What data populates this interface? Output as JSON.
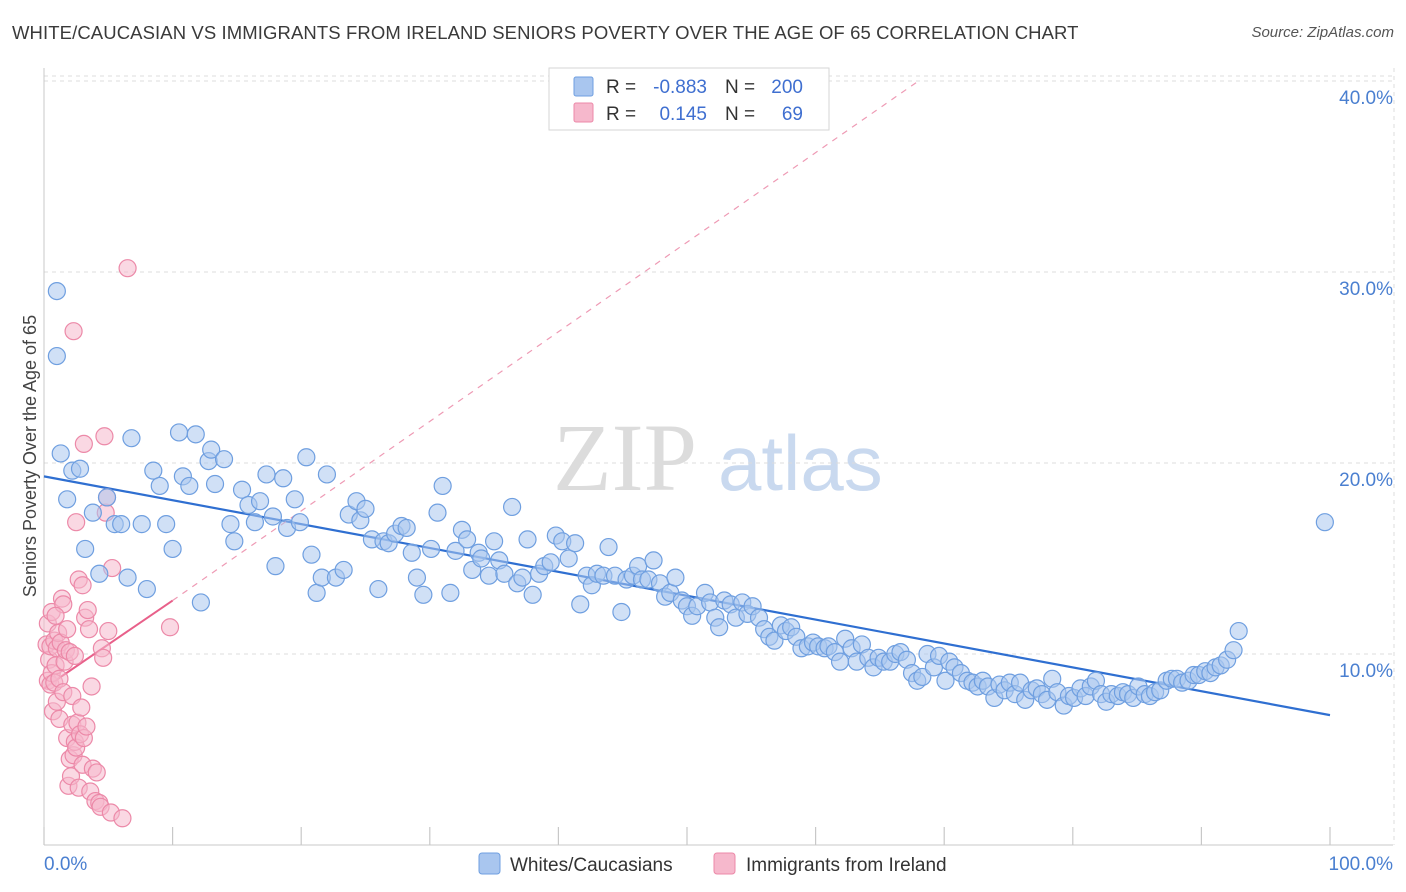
{
  "title": "WHITE/CAUCASIAN VS IMMIGRANTS FROM IRELAND SENIORS POVERTY OVER THE AGE OF 65 CORRELATION CHART",
  "source": "Source: ZipAtlas.com",
  "watermark": {
    "zip": "ZIP",
    "atlas": "atlas"
  },
  "colors": {
    "blue_fill": "#a9c6ef",
    "blue_stroke": "#6f9fe0",
    "blue_line": "#2f6fd1",
    "pink_fill": "#f6b8cc",
    "pink_stroke": "#ec89a8",
    "pink_line": "#e8608a",
    "grid": "#dcdcdc",
    "tick_text": "#4a7fd0"
  },
  "legend": {
    "rows": [
      {
        "r_label": "R =",
        "r_value": "-0.883",
        "n_label": "N =",
        "n_value": "200"
      },
      {
        "r_label": "R =",
        "r_value": "0.145",
        "n_label": "N =",
        "n_value": "69"
      }
    ]
  },
  "chart_data": {
    "type": "scatter",
    "title": "WHITE/CAUCASIAN VS IMMIGRANTS FROM IRELAND SENIORS POVERTY OVER THE AGE OF 65 CORRELATION CHART",
    "xlabel": "",
    "ylabel": "Seniors Poverty Over the Age of 65",
    "xlim": [
      0,
      100
    ],
    "ylim": [
      0,
      42
    ],
    "x_tick_labels": [
      "0.0%",
      "100.0%"
    ],
    "y_ticks": [
      10,
      20,
      30,
      40
    ],
    "y_tick_labels": [
      "10.0%",
      "20.0%",
      "30.0%",
      "40.0%"
    ],
    "grid": true,
    "legend_position": "top-center",
    "series": [
      {
        "name": "Whites/Caucasians",
        "color": "#a9c6ef",
        "trend": {
          "x": [
            0,
            100
          ],
          "y": [
            19.3,
            6.8
          ]
        },
        "points": [
          [
            1.0,
            25.6
          ],
          [
            1.0,
            29.0
          ],
          [
            1.3,
            20.5
          ],
          [
            1.8,
            18.1
          ],
          [
            2.2,
            19.6
          ],
          [
            2.8,
            19.7
          ],
          [
            3.2,
            15.5
          ],
          [
            3.8,
            17.4
          ],
          [
            4.3,
            14.2
          ],
          [
            4.9,
            18.2
          ],
          [
            5.5,
            16.8
          ],
          [
            6.0,
            16.8
          ],
          [
            6.5,
            14.0
          ],
          [
            6.8,
            21.3
          ],
          [
            7.6,
            16.8
          ],
          [
            8.0,
            13.4
          ],
          [
            8.5,
            19.6
          ],
          [
            9.0,
            18.8
          ],
          [
            9.5,
            16.8
          ],
          [
            10.0,
            15.5
          ],
          [
            10.5,
            21.6
          ],
          [
            10.8,
            19.3
          ],
          [
            11.3,
            18.8
          ],
          [
            11.8,
            21.5
          ],
          [
            12.2,
            12.7
          ],
          [
            12.8,
            20.1
          ],
          [
            13.0,
            20.7
          ],
          [
            13.3,
            18.9
          ],
          [
            14.0,
            20.2
          ],
          [
            14.5,
            16.8
          ],
          [
            14.8,
            15.9
          ],
          [
            15.4,
            18.6
          ],
          [
            15.9,
            17.8
          ],
          [
            16.4,
            16.9
          ],
          [
            16.8,
            18.0
          ],
          [
            17.3,
            19.4
          ],
          [
            17.8,
            17.2
          ],
          [
            18.0,
            14.6
          ],
          [
            18.6,
            19.2
          ],
          [
            18.9,
            16.6
          ],
          [
            19.5,
            18.1
          ],
          [
            19.9,
            16.9
          ],
          [
            20.4,
            20.3
          ],
          [
            20.8,
            15.2
          ],
          [
            21.2,
            13.2
          ],
          [
            21.6,
            14.0
          ],
          [
            22.0,
            19.4
          ],
          [
            22.7,
            14.0
          ],
          [
            23.3,
            14.4
          ],
          [
            23.7,
            17.3
          ],
          [
            24.3,
            18.0
          ],
          [
            24.6,
            17.0
          ],
          [
            25.0,
            17.6
          ],
          [
            25.5,
            16.0
          ],
          [
            26.0,
            13.4
          ],
          [
            26.4,
            15.9
          ],
          [
            26.8,
            15.8
          ],
          [
            27.3,
            16.3
          ],
          [
            27.8,
            16.7
          ],
          [
            28.2,
            16.6
          ],
          [
            28.6,
            15.3
          ],
          [
            29.0,
            14.0
          ],
          [
            29.5,
            13.1
          ],
          [
            30.1,
            15.5
          ],
          [
            30.6,
            17.4
          ],
          [
            31.0,
            18.8
          ],
          [
            31.6,
            13.2
          ],
          [
            32.0,
            15.4
          ],
          [
            32.5,
            16.5
          ],
          [
            32.9,
            16.0
          ],
          [
            33.3,
            14.4
          ],
          [
            33.8,
            15.3
          ],
          [
            34.0,
            15.0
          ],
          [
            34.6,
            14.1
          ],
          [
            35.0,
            15.9
          ],
          [
            35.4,
            14.9
          ],
          [
            35.8,
            14.2
          ],
          [
            36.4,
            17.7
          ],
          [
            36.8,
            13.7
          ],
          [
            37.2,
            14.0
          ],
          [
            37.6,
            16.0
          ],
          [
            38.0,
            13.1
          ],
          [
            38.5,
            14.2
          ],
          [
            38.9,
            14.6
          ],
          [
            39.4,
            14.8
          ],
          [
            39.8,
            16.2
          ],
          [
            40.3,
            15.9
          ],
          [
            40.8,
            15.0
          ],
          [
            41.3,
            15.8
          ],
          [
            41.7,
            12.6
          ],
          [
            42.2,
            14.1
          ],
          [
            42.6,
            13.6
          ],
          [
            43.0,
            14.2
          ],
          [
            43.5,
            14.1
          ],
          [
            43.9,
            15.6
          ],
          [
            44.4,
            14.1
          ],
          [
            44.9,
            12.2
          ],
          [
            45.3,
            13.9
          ],
          [
            45.8,
            14.1
          ],
          [
            46.2,
            14.6
          ],
          [
            46.5,
            13.9
          ],
          [
            47.0,
            13.9
          ],
          [
            47.4,
            14.9
          ],
          [
            47.9,
            13.7
          ],
          [
            48.3,
            13.0
          ],
          [
            48.7,
            13.2
          ],
          [
            49.1,
            14.0
          ],
          [
            49.6,
            12.8
          ],
          [
            50.0,
            12.5
          ],
          [
            50.4,
            12.0
          ],
          [
            50.8,
            12.5
          ],
          [
            51.4,
            13.2
          ],
          [
            51.8,
            12.7
          ],
          [
            52.2,
            11.9
          ],
          [
            52.5,
            11.4
          ],
          [
            52.9,
            12.8
          ],
          [
            53.4,
            12.6
          ],
          [
            53.8,
            11.9
          ],
          [
            54.3,
            12.7
          ],
          [
            54.7,
            12.1
          ],
          [
            55.1,
            12.5
          ],
          [
            55.6,
            11.9
          ],
          [
            56.0,
            11.3
          ],
          [
            56.4,
            10.9
          ],
          [
            56.8,
            10.7
          ],
          [
            57.3,
            11.5
          ],
          [
            57.7,
            11.2
          ],
          [
            58.1,
            11.4
          ],
          [
            58.5,
            10.9
          ],
          [
            58.9,
            10.3
          ],
          [
            59.4,
            10.4
          ],
          [
            59.8,
            10.6
          ],
          [
            60.2,
            10.4
          ],
          [
            60.7,
            10.3
          ],
          [
            61.0,
            10.4
          ],
          [
            61.5,
            10.1
          ],
          [
            61.9,
            9.6
          ],
          [
            62.3,
            10.8
          ],
          [
            62.8,
            10.3
          ],
          [
            63.2,
            9.6
          ],
          [
            63.6,
            10.5
          ],
          [
            64.1,
            9.8
          ],
          [
            64.5,
            9.3
          ],
          [
            64.9,
            9.8
          ],
          [
            65.3,
            9.6
          ],
          [
            65.8,
            9.6
          ],
          [
            66.2,
            10.0
          ],
          [
            66.6,
            10.1
          ],
          [
            67.1,
            9.7
          ],
          [
            67.5,
            9.0
          ],
          [
            67.9,
            8.6
          ],
          [
            68.3,
            8.8
          ],
          [
            68.7,
            10.0
          ],
          [
            69.2,
            9.3
          ],
          [
            69.6,
            9.9
          ],
          [
            70.1,
            8.6
          ],
          [
            70.4,
            9.6
          ],
          [
            70.8,
            9.3
          ],
          [
            71.3,
            9.0
          ],
          [
            71.8,
            8.6
          ],
          [
            72.2,
            8.5
          ],
          [
            72.6,
            8.3
          ],
          [
            73.0,
            8.6
          ],
          [
            73.4,
            8.3
          ],
          [
            73.9,
            7.7
          ],
          [
            74.3,
            8.4
          ],
          [
            74.7,
            8.1
          ],
          [
            75.1,
            8.5
          ],
          [
            75.5,
            7.9
          ],
          [
            75.9,
            8.5
          ],
          [
            76.3,
            7.6
          ],
          [
            76.8,
            8.1
          ],
          [
            77.2,
            8.2
          ],
          [
            77.6,
            7.9
          ],
          [
            78.0,
            7.6
          ],
          [
            78.4,
            8.7
          ],
          [
            78.8,
            8.0
          ],
          [
            79.3,
            7.3
          ],
          [
            79.7,
            7.8
          ],
          [
            80.1,
            7.7
          ],
          [
            80.6,
            8.2
          ],
          [
            81.0,
            7.8
          ],
          [
            81.4,
            8.3
          ],
          [
            81.8,
            8.6
          ],
          [
            82.2,
            7.9
          ],
          [
            82.6,
            7.5
          ],
          [
            83.0,
            7.9
          ],
          [
            83.5,
            7.8
          ],
          [
            83.9,
            8.0
          ],
          [
            84.3,
            7.9
          ],
          [
            84.7,
            7.7
          ],
          [
            85.1,
            8.3
          ],
          [
            85.6,
            7.9
          ],
          [
            86.0,
            7.8
          ],
          [
            86.4,
            8.0
          ],
          [
            86.8,
            8.1
          ],
          [
            87.3,
            8.6
          ],
          [
            87.7,
            8.7
          ],
          [
            88.1,
            8.7
          ],
          [
            88.5,
            8.5
          ],
          [
            89.0,
            8.6
          ],
          [
            89.4,
            8.9
          ],
          [
            89.8,
            8.9
          ],
          [
            90.3,
            9.1
          ],
          [
            90.7,
            9.0
          ],
          [
            91.1,
            9.3
          ],
          [
            91.5,
            9.4
          ],
          [
            92.0,
            9.7
          ],
          [
            92.5,
            10.2
          ],
          [
            92.9,
            11.2
          ],
          [
            99.6,
            16.9
          ]
        ]
      },
      {
        "name": "Immigrants from Ireland",
        "color": "#f6b8cc",
        "trend": {
          "x": [
            0,
            10
          ],
          "y": [
            8.2,
            12.8
          ]
        },
        "trend_extended": {
          "x": [
            10,
            68
          ],
          "y": [
            12.8,
            40.0
          ]
        },
        "points": [
          [
            0.2,
            10.5
          ],
          [
            0.3,
            8.6
          ],
          [
            0.3,
            11.6
          ],
          [
            0.4,
            9.7
          ],
          [
            0.5,
            8.4
          ],
          [
            0.5,
            10.4
          ],
          [
            0.6,
            12.2
          ],
          [
            0.6,
            9.0
          ],
          [
            0.7,
            7.0
          ],
          [
            0.8,
            10.7
          ],
          [
            0.8,
            8.5
          ],
          [
            0.9,
            9.4
          ],
          [
            1.0,
            7.5
          ],
          [
            1.0,
            10.3
          ],
          [
            1.1,
            11.1
          ],
          [
            1.2,
            8.7
          ],
          [
            1.2,
            6.6
          ],
          [
            1.3,
            10.6
          ],
          [
            1.4,
            12.9
          ],
          [
            1.5,
            8.0
          ],
          [
            1.6,
            9.6
          ],
          [
            1.7,
            10.2
          ],
          [
            1.8,
            5.6
          ],
          [
            1.8,
            11.3
          ],
          [
            1.9,
            3.1
          ],
          [
            2.0,
            4.5
          ],
          [
            2.1,
            3.6
          ],
          [
            2.2,
            6.3
          ],
          [
            2.2,
            7.8
          ],
          [
            2.3,
            4.7
          ],
          [
            2.4,
            5.4
          ],
          [
            2.5,
            5.1
          ],
          [
            2.6,
            6.4
          ],
          [
            2.7,
            3.0
          ],
          [
            2.8,
            5.8
          ],
          [
            2.9,
            7.2
          ],
          [
            3.0,
            4.2
          ],
          [
            3.1,
            5.6
          ],
          [
            3.2,
            11.9
          ],
          [
            3.3,
            6.2
          ],
          [
            3.5,
            11.3
          ],
          [
            3.6,
            2.8
          ],
          [
            3.7,
            8.3
          ],
          [
            3.8,
            4.0
          ],
          [
            4.0,
            2.3
          ],
          [
            4.1,
            3.8
          ],
          [
            4.3,
            2.2
          ],
          [
            4.4,
            2.0
          ],
          [
            4.5,
            10.3
          ],
          [
            4.6,
            9.8
          ],
          [
            4.7,
            21.4
          ],
          [
            4.8,
            17.4
          ],
          [
            4.9,
            18.2
          ],
          [
            5.0,
            11.2
          ],
          [
            5.2,
            1.7
          ],
          [
            5.3,
            14.5
          ],
          [
            2.3,
            26.9
          ],
          [
            2.5,
            16.9
          ],
          [
            2.7,
            13.9
          ],
          [
            3.0,
            13.6
          ],
          [
            3.4,
            12.3
          ],
          [
            3.1,
            21.0
          ],
          [
            6.1,
            1.4
          ],
          [
            6.5,
            30.2
          ],
          [
            9.8,
            11.4
          ],
          [
            1.5,
            12.6
          ],
          [
            2.0,
            10.1
          ],
          [
            2.4,
            9.9
          ],
          [
            0.9,
            12.0
          ]
        ]
      }
    ]
  }
}
